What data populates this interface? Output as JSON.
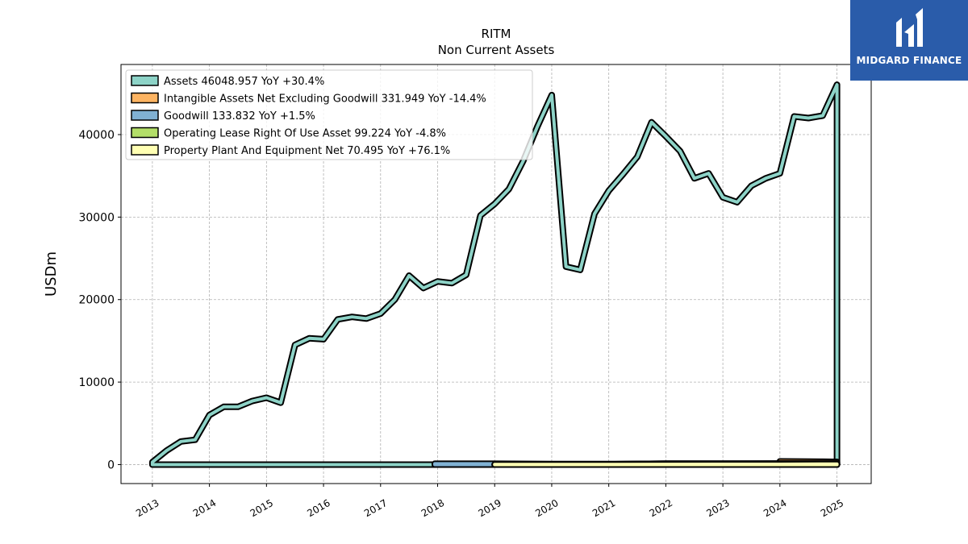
{
  "brand": {
    "name": "MIDGARD FINANCE",
    "color": "#2a5caa"
  },
  "chart_data": {
    "type": "area",
    "title": "RITM",
    "subtitle": "Non Current  Assets",
    "xlabel": "",
    "ylabel": "USDm",
    "xlim": [
      2012.45,
      2025.6
    ],
    "ylim": [
      -2300,
      48500
    ],
    "yticks": [
      0,
      10000,
      20000,
      30000,
      40000
    ],
    "xticks": [
      2013,
      2014,
      2015,
      2016,
      2017,
      2018,
      2019,
      2020,
      2021,
      2022,
      2023,
      2024,
      2025
    ],
    "grid": true,
    "legend_position": "top-left",
    "series": [
      {
        "name": "Assets  46048.957 YoY +30.4%",
        "color": "#8dd3c7",
        "points": [
          [
            2013.0,
            300
          ],
          [
            2013.25,
            1700
          ],
          [
            2013.5,
            2800
          ],
          [
            2013.75,
            3000
          ],
          [
            2014.0,
            6000
          ],
          [
            2014.25,
            7000
          ],
          [
            2014.5,
            7000
          ],
          [
            2014.75,
            7700
          ],
          [
            2015.0,
            8100
          ],
          [
            2015.25,
            7500
          ],
          [
            2015.5,
            14500
          ],
          [
            2015.75,
            15300
          ],
          [
            2016.0,
            15200
          ],
          [
            2016.25,
            17600
          ],
          [
            2016.5,
            17900
          ],
          [
            2016.75,
            17700
          ],
          [
            2017.0,
            18300
          ],
          [
            2017.25,
            20000
          ],
          [
            2017.5,
            22900
          ],
          [
            2017.75,
            21400
          ],
          [
            2018.0,
            22200
          ],
          [
            2018.25,
            22000
          ],
          [
            2018.5,
            23000
          ],
          [
            2018.75,
            30200
          ],
          [
            2019.0,
            31600
          ],
          [
            2019.25,
            33400
          ],
          [
            2019.5,
            36800
          ],
          [
            2019.75,
            41000
          ],
          [
            2020.0,
            44800
          ],
          [
            2020.25,
            24000
          ],
          [
            2020.5,
            23600
          ],
          [
            2020.75,
            30400
          ],
          [
            2021.0,
            33200
          ],
          [
            2021.25,
            35200
          ],
          [
            2021.5,
            37300
          ],
          [
            2021.75,
            41500
          ],
          [
            2022.0,
            39800
          ],
          [
            2022.25,
            38000
          ],
          [
            2022.5,
            34700
          ],
          [
            2022.75,
            35300
          ],
          [
            2023.0,
            32400
          ],
          [
            2023.25,
            31800
          ],
          [
            2023.5,
            33800
          ],
          [
            2023.75,
            34700
          ],
          [
            2024.0,
            35300
          ],
          [
            2024.25,
            42200
          ],
          [
            2024.5,
            42000
          ],
          [
            2024.75,
            42300
          ],
          [
            2025.0,
            46049
          ]
        ]
      },
      {
        "name": "Intangible Assets Net Excluding Goodwill  331.949 YoY -14.4%",
        "color": "#fdb462",
        "points": [
          [
            2024.0,
            390
          ],
          [
            2024.25,
            380
          ],
          [
            2024.5,
            370
          ],
          [
            2024.75,
            350
          ],
          [
            2025.0,
            332
          ]
        ]
      },
      {
        "name": "Goodwill  133.832 YoY +1.5%",
        "color": "#80b1d3",
        "points": [
          [
            2017.95,
            100
          ],
          [
            2018.25,
            100
          ],
          [
            2018.5,
            100
          ],
          [
            2018.75,
            100
          ],
          [
            2019.0,
            100
          ],
          [
            2020.0,
            60
          ],
          [
            2021.0,
            60
          ],
          [
            2022.0,
            100
          ],
          [
            2023.0,
            100
          ],
          [
            2024.0,
            131
          ],
          [
            2025.0,
            134
          ]
        ]
      },
      {
        "name": "Operating Lease Right Of Use Asset  99.224 YoY -4.8%",
        "color": "#b3de69",
        "points": [
          [
            2019.0,
            10
          ],
          [
            2019.5,
            20
          ],
          [
            2020.0,
            20
          ],
          [
            2021.0,
            30
          ],
          [
            2022.0,
            120
          ],
          [
            2023.0,
            110
          ],
          [
            2024.0,
            104
          ],
          [
            2025.0,
            99
          ]
        ]
      },
      {
        "name": "Property Plant And Equipment Net  70.495 YoY +76.1%",
        "color": "#ffffb3",
        "points": [
          [
            2019.0,
            20
          ],
          [
            2020.0,
            20
          ],
          [
            2021.0,
            25
          ],
          [
            2022.0,
            35
          ],
          [
            2023.0,
            40
          ],
          [
            2024.0,
            40
          ],
          [
            2025.0,
            70
          ]
        ]
      }
    ]
  }
}
